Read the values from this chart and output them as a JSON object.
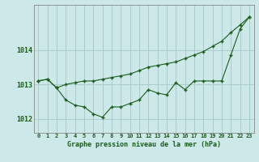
{
  "title": "Graphe pression niveau de la mer (hPa)",
  "background_color": "#cce8e8",
  "grid_color": "#aacccc",
  "line_color": "#1a5c1a",
  "x_labels": [
    "0",
    "1",
    "2",
    "3",
    "4",
    "5",
    "6",
    "7",
    "8",
    "9",
    "10",
    "11",
    "12",
    "13",
    "14",
    "15",
    "16",
    "17",
    "18",
    "19",
    "20",
    "21",
    "22",
    "23"
  ],
  "ylim": [
    1011.6,
    1015.3
  ],
  "yticks": [
    1012,
    1013,
    1014
  ],
  "series1": [
    1013.1,
    1013.15,
    1012.9,
    1012.55,
    1012.4,
    1012.35,
    1012.15,
    1012.05,
    1012.35,
    1012.35,
    1012.45,
    1012.55,
    1012.85,
    1012.75,
    1012.7,
    1013.05,
    1012.85,
    1013.1,
    1013.1,
    1013.1,
    1013.1,
    1013.85,
    1014.6,
    1014.95
  ],
  "series2": [
    1013.1,
    1013.15,
    1012.9,
    1013.0,
    1013.05,
    1013.1,
    1013.1,
    1013.15,
    1013.2,
    1013.25,
    1013.3,
    1013.4,
    1013.5,
    1013.55,
    1013.6,
    1013.65,
    1013.75,
    1013.85,
    1013.95,
    1014.1,
    1014.25,
    1014.5,
    1014.72,
    1014.95
  ]
}
